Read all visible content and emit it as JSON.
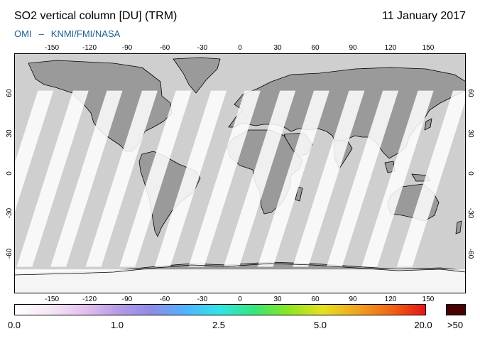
{
  "header": {
    "title": "SO2 vertical column [DU] (TRM)",
    "date": "11 January 2017",
    "credit_left": "OMI",
    "credit_sep": "–",
    "credit_right": "KNMI/FMI/NASA"
  },
  "map": {
    "projection": "equirectangular",
    "lon_range": [
      -180,
      180
    ],
    "lat_range": [
      -90,
      90
    ],
    "lon_ticks": [
      "-150",
      "-120",
      "-90",
      "-60",
      "-30",
      "0",
      "30",
      "60",
      "90",
      "120",
      "150"
    ],
    "lat_ticks_left": [
      "60",
      "30",
      "0",
      "-30",
      "-60"
    ],
    "lat_ticks_right": [
      "60",
      "30",
      "0",
      "-30",
      "-60"
    ],
    "colors": {
      "background": "#cfcfcf",
      "land": "#9a9a9a",
      "swath": "#ffffff",
      "coastline": "#000000"
    },
    "swath_center_lons": [
      -176,
      -148,
      -121,
      -93,
      -66,
      -38,
      -11,
      17,
      44,
      72,
      99,
      127,
      155
    ]
  },
  "colorbar": {
    "labels": [
      "0.0",
      "1.0",
      "2.5",
      "5.0",
      "20.0"
    ],
    "overflow_label": ">50",
    "overflow_color": "#4a0000",
    "stops": [
      "#ffffff",
      "#f5e8f6",
      "#e4c2ee",
      "#b89be6",
      "#8c8ce6",
      "#4fb4ff",
      "#2fe6e6",
      "#35e67a",
      "#8ce61e",
      "#e6e01e",
      "#f0a51e",
      "#f06414",
      "#e61414"
    ]
  }
}
